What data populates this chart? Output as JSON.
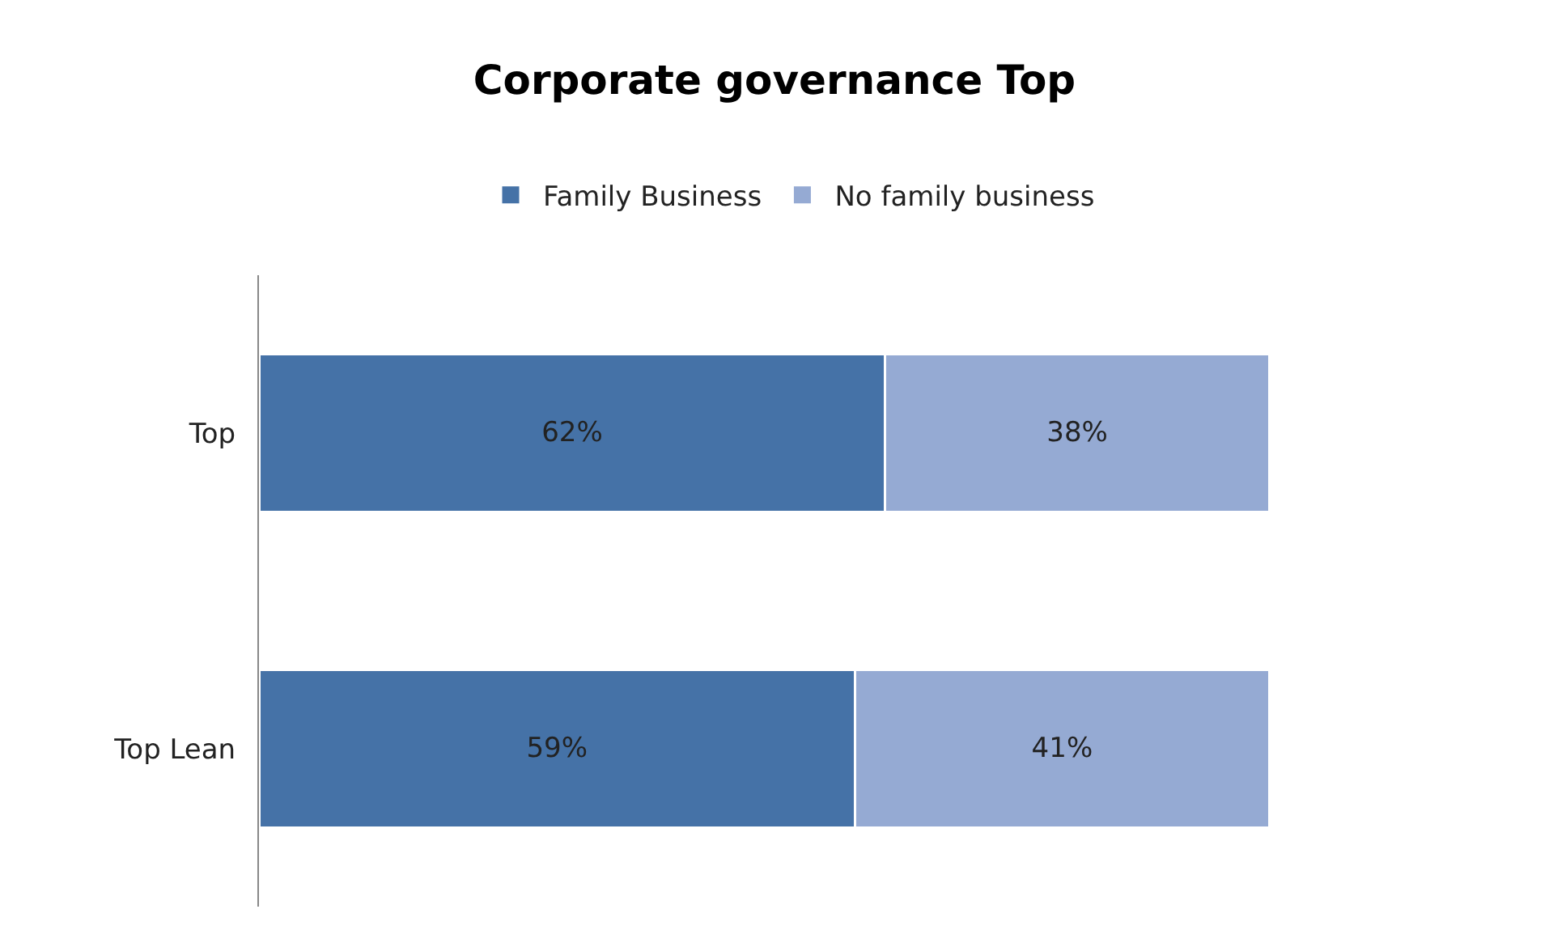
{
  "chart_data": {
    "type": "bar",
    "title": "Corporate governance Top",
    "orientation": "horizontal",
    "stacked": true,
    "categories": [
      "Top",
      "Top Lean"
    ],
    "series": [
      {
        "name": "Family Business",
        "color": "#4572a7",
        "values": [
          62,
          59
        ],
        "value_labels": [
          "62%",
          "59%"
        ]
      },
      {
        "name": "No family business",
        "color": "#95aad3",
        "values": [
          38,
          41
        ],
        "value_labels": [
          "38%",
          "41%"
        ]
      }
    ],
    "legend": "top"
  }
}
